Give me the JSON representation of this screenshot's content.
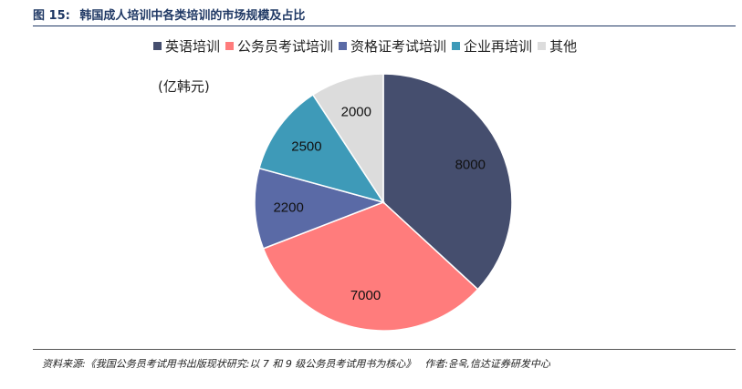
{
  "figure": {
    "number": "图 15:",
    "title": "韩国成人培训中各类培训的市场规模及占比",
    "unit": "(亿韩元)",
    "source": "资料来源:《我国公务员考试用书出版现状研究:以 7 和 9 级公务员考试用书为核心》",
    "author": "作者:윤욱,信达证券研发中心"
  },
  "chart_data": {
    "type": "pie",
    "title": "韩国成人培训中各类培训的市场规模及占比",
    "unit": "亿韩元",
    "legend_position": "top",
    "categories": [
      "英语培训",
      "公务员考试培训",
      "资格证考试培训",
      "企业再培训",
      "其他"
    ],
    "values": [
      8000,
      7000,
      2200,
      2500,
      2000
    ],
    "colors": [
      "#454e6e",
      "#ff7c7c",
      "#5a6aa6",
      "#3e9ab8",
      "#dcdcdc"
    ],
    "value_labels": [
      "8000",
      "7000",
      "2200",
      "2500",
      "2000"
    ]
  }
}
